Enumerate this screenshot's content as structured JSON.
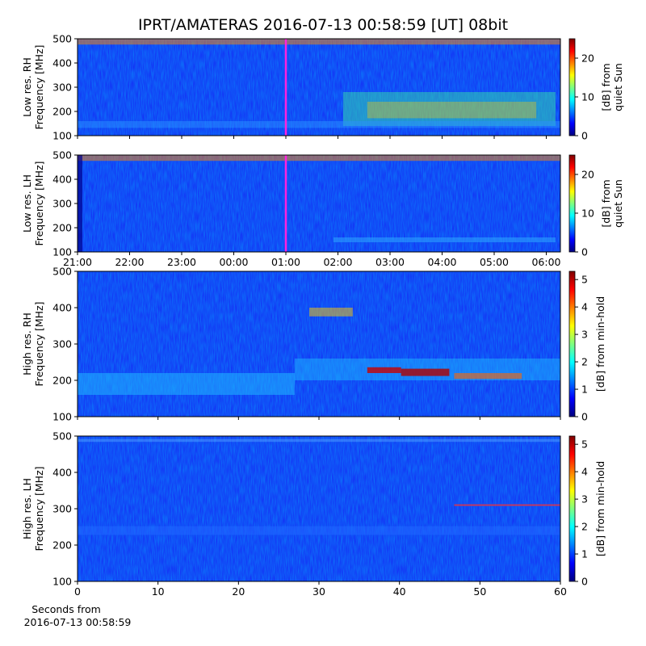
{
  "title": "IPRT/AMATERAS 2016-07-13 00:58:59 [UT]   08bit",
  "chart_data": [
    {
      "type": "heatmap",
      "ylabel": [
        "Low res. RH",
        "Frequency [MHz]"
      ],
      "ylim": [
        100,
        500
      ],
      "yticks": [
        100,
        200,
        300,
        400,
        500
      ],
      "colorbar": {
        "label": [
          "[dB] from",
          "quiet Sun"
        ],
        "lim": [
          0,
          25
        ],
        "ticks": [
          0,
          10,
          20
        ]
      }
    },
    {
      "type": "heatmap",
      "ylabel": [
        "Low res. LH",
        "Frequency [MHz]"
      ],
      "ylim": [
        100,
        500
      ],
      "yticks": [
        100,
        200,
        300,
        400,
        500
      ],
      "xticks": [
        "21:00",
        "22:00",
        "23:00",
        "00:00",
        "01:00",
        "02:00",
        "03:00",
        "04:00",
        "05:00",
        "06:00"
      ],
      "colorbar": {
        "label": [
          "[dB] from",
          "quiet Sun"
        ],
        "lim": [
          0,
          25
        ],
        "ticks": [
          0,
          10,
          20
        ]
      }
    },
    {
      "type": "heatmap",
      "ylabel": [
        "High res. RH",
        "Frequency [MHz]"
      ],
      "ylim": [
        100,
        500
      ],
      "yticks": [
        100,
        200,
        300,
        400,
        500
      ],
      "xlim": [
        0,
        60
      ],
      "colorbar": {
        "label": [
          "[dB] from min-hold"
        ],
        "lim": [
          0,
          5.3
        ],
        "ticks": [
          0,
          1,
          2,
          3,
          4,
          5
        ]
      }
    },
    {
      "type": "heatmap",
      "ylabel": [
        "High res. LH",
        "Frequency [MHz]"
      ],
      "ylim": [
        100,
        500
      ],
      "yticks": [
        100,
        200,
        300,
        400,
        500
      ],
      "xlim": [
        0,
        60
      ],
      "xticks": [
        0,
        10,
        20,
        30,
        40,
        50,
        60
      ],
      "xlabel": [
        "Seconds from",
        "2016-07-13 00:58:59"
      ],
      "colorbar": {
        "label": [
          "[dB] from min-hold"
        ],
        "lim": [
          0,
          5.3
        ],
        "ticks": [
          0,
          1,
          2,
          3,
          4,
          5
        ]
      }
    }
  ]
}
